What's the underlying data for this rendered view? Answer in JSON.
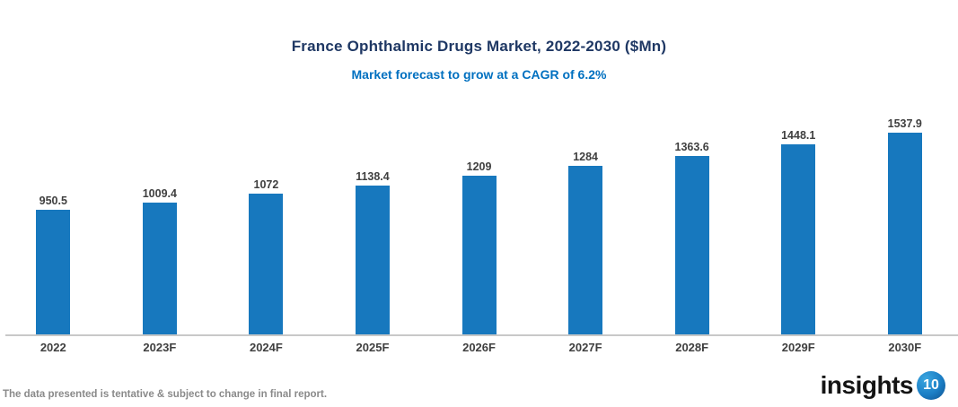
{
  "title": "France Ophthalmic Drugs Market, 2022-2030 ($Mn)",
  "subtitle": "Market forecast to grow at a CAGR of 6.2%",
  "footer": {
    "disclaimer": "The data presented is tentative & subject to change in final report."
  },
  "logo": {
    "text": "insights",
    "badge": "10"
  },
  "colors": {
    "title": "#1f3864",
    "subtitle": "#0070c0",
    "bar": "#1778be",
    "value_label": "#3f3f3f",
    "category_label": "#3f3f3f",
    "axis_line": "#c8c8c8",
    "footer_text": "#8a8a8a"
  },
  "chart_data": {
    "type": "bar",
    "categories": [
      "2022",
      "2023F",
      "2024F",
      "2025F",
      "2026F",
      "2027F",
      "2028F",
      "2029F",
      "2030F"
    ],
    "values": [
      950.5,
      1009.4,
      1072,
      1138.4,
      1209,
      1284,
      1363.6,
      1448.1,
      1537.9
    ],
    "value_labels": [
      "950.5",
      "1009.4",
      "1072",
      "1138.4",
      "1209",
      "1284",
      "1363.6",
      "1448.1",
      "1537.9"
    ],
    "title": "France Ophthalmic Drugs Market, 2022-2030 ($Mn)",
    "subtitle": "Market forecast to grow at a CAGR of 6.2%",
    "xlabel": "",
    "ylabel": "",
    "ylim": [
      0,
      1800
    ],
    "grid": false,
    "legend": false,
    "cagr": "6.2%"
  }
}
